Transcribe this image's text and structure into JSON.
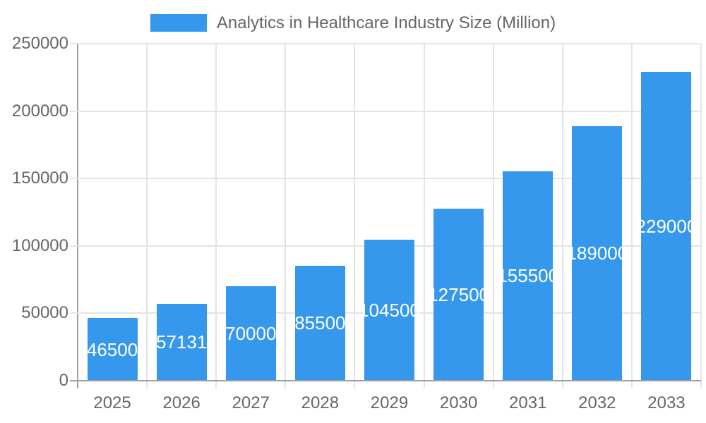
{
  "chart_data": {
    "type": "bar",
    "title": "Analytics in Healthcare Industry Size (Million)",
    "legend_position": "top",
    "categories": [
      "2025",
      "2026",
      "2027",
      "2028",
      "2029",
      "2030",
      "2031",
      "2032",
      "2033"
    ],
    "series": [
      {
        "name": "Analytics in Healthcare Industry Size (Million)",
        "values": [
          46500,
          57131,
          70000,
          85500,
          104500,
          127500,
          155500,
          189000,
          229000
        ],
        "value_labels": [
          "46500",
          "57131",
          "70000",
          "85500",
          "104500",
          "127500",
          "155500",
          "189000",
          "229000"
        ]
      }
    ],
    "xlabel": "",
    "ylabel": "",
    "ylim": [
      0,
      250000
    ],
    "y_ticks": [
      0,
      50000,
      100000,
      150000,
      200000,
      250000
    ],
    "y_tick_labels": [
      "0",
      "50000",
      "100000",
      "150000",
      "200000",
      "250000"
    ],
    "grid": true,
    "colors": {
      "bar": "#3598ec",
      "grid_line": "#e4e4e4",
      "axis_line": "#9e9e9e",
      "tick_text": "#666666",
      "value_label_text": "#ffffff",
      "legend_text": "#666666",
      "background": "#ffffff"
    }
  }
}
